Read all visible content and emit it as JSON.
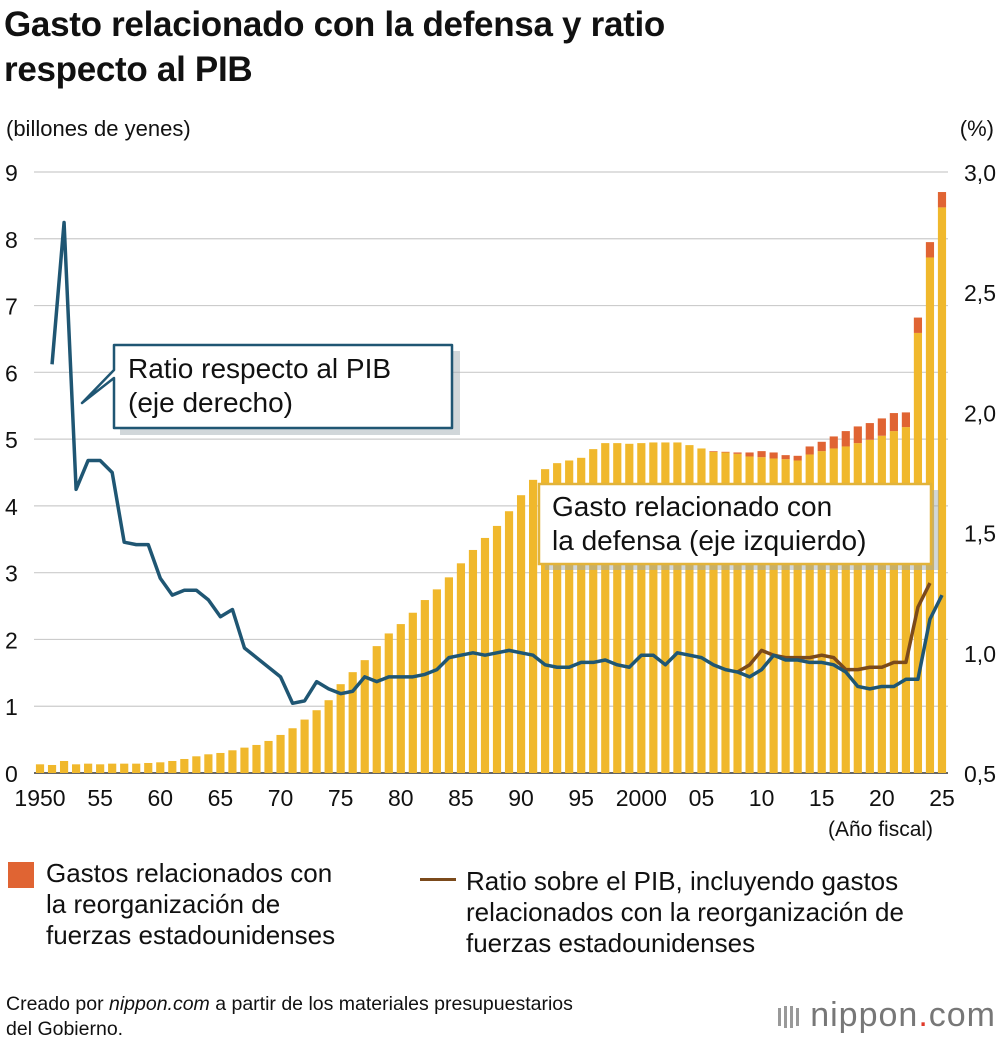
{
  "title_line1": "Gasto relacionado con la defensa y ratio",
  "title_line2": "respecto al PIB",
  "legend_reorg": [
    "Gastos relacionados con",
    "la reorganización de",
    "fuerzas estadounidenses"
  ],
  "legend_ratio2": [
    "Ratio sobre el PIB, incluyendo gastos",
    "relacionados con la reorganización de",
    "fuerzas estadounidenses"
  ],
  "source_prefix": "Creado por ",
  "source_site": "nippon.com",
  "source_suffix": " a partir de los materiales presupuestarios",
  "source_line2": "del Gobierno.",
  "brand_a": "nippon",
  "brand_dot": ".",
  "brand_b": "com",
  "colors": {
    "bar": "#f0b82c",
    "reorg": "#e06433",
    "ratio": "#1f5673",
    "ratio_incl": "#7b4a1b",
    "grid": "#cccccc"
  },
  "chart_data": {
    "type": "bar",
    "title": "Gasto relacionado con la defensa y ratio respecto al PIB",
    "ylabel": "(billones de yenes)",
    "y2label": "(%)",
    "xlabel": "(Año fiscal)",
    "ylim": [
      0,
      9
    ],
    "y2lim": [
      0.5,
      3.0
    ],
    "yticks": [
      "0",
      "1",
      "2",
      "3",
      "4",
      "5",
      "6",
      "7",
      "8",
      "9"
    ],
    "y2ticks": [
      "0,5",
      "1,0",
      "1,5",
      "2,0",
      "2,5",
      "3,0"
    ],
    "xtick_labels": [
      {
        "year": 1950,
        "label": "1950"
      },
      {
        "year": 1955,
        "label": "55"
      },
      {
        "year": 1960,
        "label": "60"
      },
      {
        "year": 1965,
        "label": "65"
      },
      {
        "year": 1970,
        "label": "70"
      },
      {
        "year": 1975,
        "label": "75"
      },
      {
        "year": 1980,
        "label": "80"
      },
      {
        "year": 1985,
        "label": "85"
      },
      {
        "year": 1990,
        "label": "90"
      },
      {
        "year": 1995,
        "label": "95"
      },
      {
        "year": 2000,
        "label": "2000"
      },
      {
        "year": 2005,
        "label": "05"
      },
      {
        "year": 2010,
        "label": "10"
      },
      {
        "year": 2015,
        "label": "15"
      },
      {
        "year": 2020,
        "label": "20"
      },
      {
        "year": 2025,
        "label": "25"
      }
    ],
    "years": [
      1950,
      1951,
      1952,
      1953,
      1954,
      1955,
      1956,
      1957,
      1958,
      1959,
      1960,
      1961,
      1962,
      1963,
      1964,
      1965,
      1966,
      1967,
      1968,
      1969,
      1970,
      1971,
      1972,
      1973,
      1974,
      1975,
      1976,
      1977,
      1978,
      1979,
      1980,
      1981,
      1982,
      1983,
      1984,
      1985,
      1986,
      1987,
      1988,
      1989,
      1990,
      1991,
      1992,
      1993,
      1994,
      1995,
      1996,
      1997,
      1998,
      1999,
      2000,
      2001,
      2002,
      2003,
      2004,
      2005,
      2006,
      2007,
      2008,
      2009,
      2010,
      2011,
      2012,
      2013,
      2014,
      2015,
      2016,
      2017,
      2018,
      2019,
      2020,
      2021,
      2022,
      2023,
      2024,
      2025
    ],
    "series": [
      {
        "name": "Gasto relacionado con la defensa (eje izquierdo)",
        "axis": "left",
        "kind": "bar",
        "values": [
          0.13,
          0.12,
          0.18,
          0.13,
          0.14,
          0.13,
          0.14,
          0.14,
          0.14,
          0.15,
          0.16,
          0.18,
          0.21,
          0.25,
          0.28,
          0.3,
          0.34,
          0.38,
          0.42,
          0.48,
          0.57,
          0.67,
          0.8,
          0.94,
          1.09,
          1.33,
          1.51,
          1.69,
          1.9,
          2.09,
          2.23,
          2.4,
          2.59,
          2.75,
          2.93,
          3.14,
          3.34,
          3.52,
          3.7,
          3.92,
          4.16,
          4.39,
          4.55,
          4.64,
          4.68,
          4.72,
          4.85,
          4.94,
          4.94,
          4.93,
          4.94,
          4.95,
          4.95,
          4.95,
          4.91,
          4.86,
          4.81,
          4.8,
          4.78,
          4.74,
          4.73,
          4.71,
          4.7,
          4.68,
          4.77,
          4.82,
          4.86,
          4.89,
          4.94,
          4.99,
          5.05,
          5.12,
          5.18,
          6.59,
          7.72,
          8.47
        ]
      },
      {
        "name": "Gastos relacionados con la reorganización de fuerzas estadounidenses",
        "axis": "left",
        "kind": "bar-stack",
        "values": [
          0,
          0,
          0,
          0,
          0,
          0,
          0,
          0,
          0,
          0,
          0,
          0,
          0,
          0,
          0,
          0,
          0,
          0,
          0,
          0,
          0,
          0,
          0,
          0,
          0,
          0,
          0,
          0,
          0,
          0,
          0,
          0,
          0,
          0,
          0,
          0,
          0,
          0,
          0,
          0,
          0,
          0,
          0,
          0,
          0,
          0,
          0,
          0,
          0,
          0,
          0,
          0,
          0,
          0,
          0,
          0,
          0.01,
          0.01,
          0.02,
          0.06,
          0.09,
          0.09,
          0.06,
          0.07,
          0.12,
          0.14,
          0.18,
          0.23,
          0.25,
          0.25,
          0.26,
          0.27,
          0.22,
          0.23,
          0.23,
          0.23
        ]
      },
      {
        "name": "Ratio respecto al PIB (eje derecho)",
        "axis": "right",
        "kind": "line",
        "values": [
          2.2,
          2.79,
          1.68,
          1.8,
          1.8,
          1.75,
          1.46,
          1.45,
          1.45,
          1.31,
          1.24,
          1.26,
          1.26,
          1.22,
          1.15,
          1.18,
          1.02,
          0.98,
          0.94,
          0.9,
          0.79,
          0.8,
          0.88,
          0.85,
          0.83,
          0.84,
          0.9,
          0.88,
          0.9,
          0.9,
          0.9,
          0.91,
          0.93,
          0.98,
          0.99,
          1.0,
          0.99,
          1.0,
          1.01,
          1.0,
          0.99,
          0.95,
          0.94,
          0.94,
          0.96,
          0.96,
          0.97,
          0.95,
          0.94,
          0.99,
          0.99,
          0.95,
          1.0,
          0.99,
          0.98,
          0.95,
          0.93,
          0.92,
          0.9,
          0.93,
          0.99,
          0.97,
          0.97,
          0.96,
          0.96,
          0.95,
          0.92,
          0.86,
          0.85,
          0.86,
          0.86,
          0.89,
          0.89,
          1.14,
          1.24
        ]
      },
      {
        "name": "Ratio sobre el PIB, incluyendo gastos relacionados con la reorganización de fuerzas estadounidenses",
        "axis": "right",
        "kind": "line",
        "start_year": 2008,
        "values": [
          0.92,
          0.95,
          1.01,
          0.99,
          0.98,
          0.98,
          0.98,
          0.99,
          0.98,
          0.93,
          0.93,
          0.94,
          0.94,
          0.96,
          0.96,
          1.19,
          1.29
        ]
      }
    ],
    "annotations": [
      {
        "id": "ratio",
        "text_lines": [
          "Ratio respecto al PIB",
          "(eje derecho)"
        ]
      },
      {
        "id": "gasto",
        "text_lines": [
          "Gasto relacionado con",
          "la defensa (eje izquierdo)"
        ]
      }
    ]
  }
}
